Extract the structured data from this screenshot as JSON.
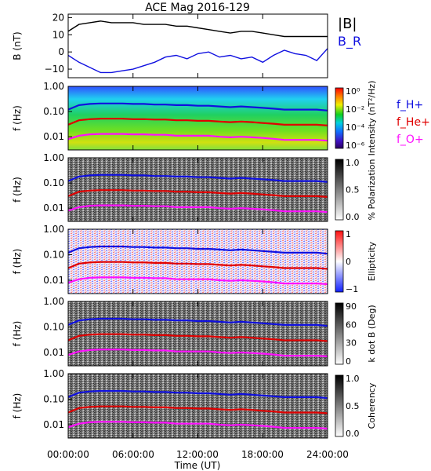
{
  "chart_data": {
    "type": "line",
    "title": "ACE Mag 2016-129",
    "xlabel": "Time (UT)",
    "x_ticks": [
      "00:00:00",
      "06:00:00",
      "12:00:00",
      "18:00:00",
      "24:00:00"
    ],
    "xlim_hours": [
      0,
      24
    ],
    "colors": {
      "black": "#000000",
      "blue": "#1010e0",
      "red": "#e00000",
      "magenta": "#ff10ff"
    },
    "panels": [
      {
        "id": "b_field",
        "type": "line",
        "ylabel": "B (nT)",
        "ylim": [
          -15,
          22
        ],
        "y_ticks": [
          "20",
          "10",
          "0",
          "−10"
        ],
        "y_tick_values": [
          20,
          10,
          0,
          -10
        ],
        "legend": [
          "|B|",
          "B_R"
        ],
        "series": [
          {
            "name": "|B|",
            "color": "#000000",
            "x": [
              0,
              1,
              2,
              3,
              4,
              5,
              6,
              7,
              8,
              9,
              10,
              11,
              12,
              13,
              14,
              15,
              16,
              17,
              18,
              19,
              20,
              21,
              22,
              23,
              24
            ],
            "y": [
              12,
              16,
              17,
              18,
              17,
              17,
              17,
              16,
              16,
              16,
              15,
              15,
              14,
              13,
              12,
              11,
              12,
              12,
              11,
              10,
              9,
              9,
              9,
              9,
              9
            ]
          },
          {
            "name": "B_R",
            "color": "#1010e0",
            "x": [
              0,
              1,
              2,
              3,
              4,
              5,
              6,
              7,
              8,
              9,
              10,
              11,
              12,
              13,
              14,
              15,
              16,
              17,
              18,
              19,
              20,
              21,
              22,
              23,
              24
            ],
            "y": [
              -2,
              -6,
              -9,
              -12,
              -12,
              -11,
              -10,
              -8,
              -6,
              -3,
              -2,
              -4,
              -1,
              0,
              -3,
              -2,
              -4,
              -3,
              -6,
              -2,
              1,
              -1,
              -2,
              -5,
              2
            ]
          }
        ]
      },
      {
        "id": "intensity",
        "type": "heatmap",
        "ylabel": "f (Hz)",
        "ylim": [
          0.003,
          1
        ],
        "y_ticks": [
          "1.00",
          "0.10",
          "0.01"
        ],
        "colorbar_label": "Intensity (nT²/Hz)",
        "colorbar_ticks": [
          "10⁰",
          "10⁻²",
          "10⁻⁴",
          "10⁻⁶"
        ],
        "legend": [
          "f_H+",
          "f_He+",
          "f_O+"
        ]
      },
      {
        "id": "polarization",
        "type": "heatmap",
        "ylabel": "f (Hz)",
        "ylim": [
          0.003,
          1
        ],
        "y_ticks": [
          "1.00",
          "0.10",
          "0.01"
        ],
        "colorbar_label": "% Polarization",
        "colorbar_ticks": [
          "1.0",
          "0.5",
          "0.0"
        ]
      },
      {
        "id": "ellipticity",
        "type": "heatmap",
        "ylabel": "f (Hz)",
        "ylim": [
          0.003,
          1
        ],
        "y_ticks": [
          "1.00",
          "0.10",
          "0.01"
        ],
        "colorbar_label": "Ellipticity",
        "colorbar_ticks": [
          "1",
          "0",
          "−1"
        ]
      },
      {
        "id": "kdotb",
        "type": "heatmap",
        "ylabel": "f (Hz)",
        "ylim": [
          0.003,
          1
        ],
        "y_ticks": [
          "1.00",
          "0.10",
          "0.01"
        ],
        "colorbar_label": "k dot B (Deg)",
        "colorbar_ticks": [
          "90",
          "60",
          "30",
          "0"
        ]
      },
      {
        "id": "coherency",
        "type": "heatmap",
        "ylabel": "f (Hz)",
        "ylim": [
          0.003,
          1
        ],
        "y_ticks": [
          "1.00",
          "0.10",
          "0.01"
        ],
        "colorbar_label": "Coherency",
        "colorbar_ticks": [
          "1.0",
          "0.5",
          "0.0"
        ]
      }
    ],
    "frequency_lines": [
      {
        "name": "f_H+",
        "color": "#1010e0",
        "x": [
          0,
          1,
          2,
          3,
          4,
          5,
          6,
          7,
          8,
          9,
          10,
          11,
          12,
          13,
          14,
          15,
          16,
          17,
          18,
          19,
          20,
          21,
          22,
          23,
          24
        ],
        "y": [
          0.12,
          0.18,
          0.2,
          0.21,
          0.21,
          0.21,
          0.2,
          0.2,
          0.19,
          0.19,
          0.18,
          0.18,
          0.17,
          0.17,
          0.16,
          0.15,
          0.16,
          0.15,
          0.14,
          0.13,
          0.12,
          0.12,
          0.12,
          0.12,
          0.11
        ]
      },
      {
        "name": "f_He+",
        "color": "#e00000",
        "x": [
          0,
          1,
          2,
          3,
          4,
          5,
          6,
          7,
          8,
          9,
          10,
          11,
          12,
          13,
          14,
          15,
          16,
          17,
          18,
          19,
          20,
          21,
          22,
          23,
          24
        ],
        "y": [
          0.03,
          0.045,
          0.05,
          0.052,
          0.052,
          0.052,
          0.05,
          0.05,
          0.048,
          0.048,
          0.045,
          0.045,
          0.043,
          0.043,
          0.04,
          0.038,
          0.04,
          0.038,
          0.035,
          0.033,
          0.03,
          0.03,
          0.03,
          0.03,
          0.028
        ]
      },
      {
        "name": "f_O+",
        "color": "#ff10ff",
        "x": [
          0,
          1,
          2,
          3,
          4,
          5,
          6,
          7,
          8,
          9,
          10,
          11,
          12,
          13,
          14,
          15,
          16,
          17,
          18,
          19,
          20,
          21,
          22,
          23,
          24
        ],
        "y": [
          0.008,
          0.011,
          0.0125,
          0.013,
          0.013,
          0.013,
          0.0125,
          0.0125,
          0.012,
          0.012,
          0.011,
          0.011,
          0.011,
          0.011,
          0.01,
          0.0095,
          0.01,
          0.0095,
          0.009,
          0.0083,
          0.0075,
          0.0075,
          0.0075,
          0.0075,
          0.007
        ]
      }
    ]
  }
}
